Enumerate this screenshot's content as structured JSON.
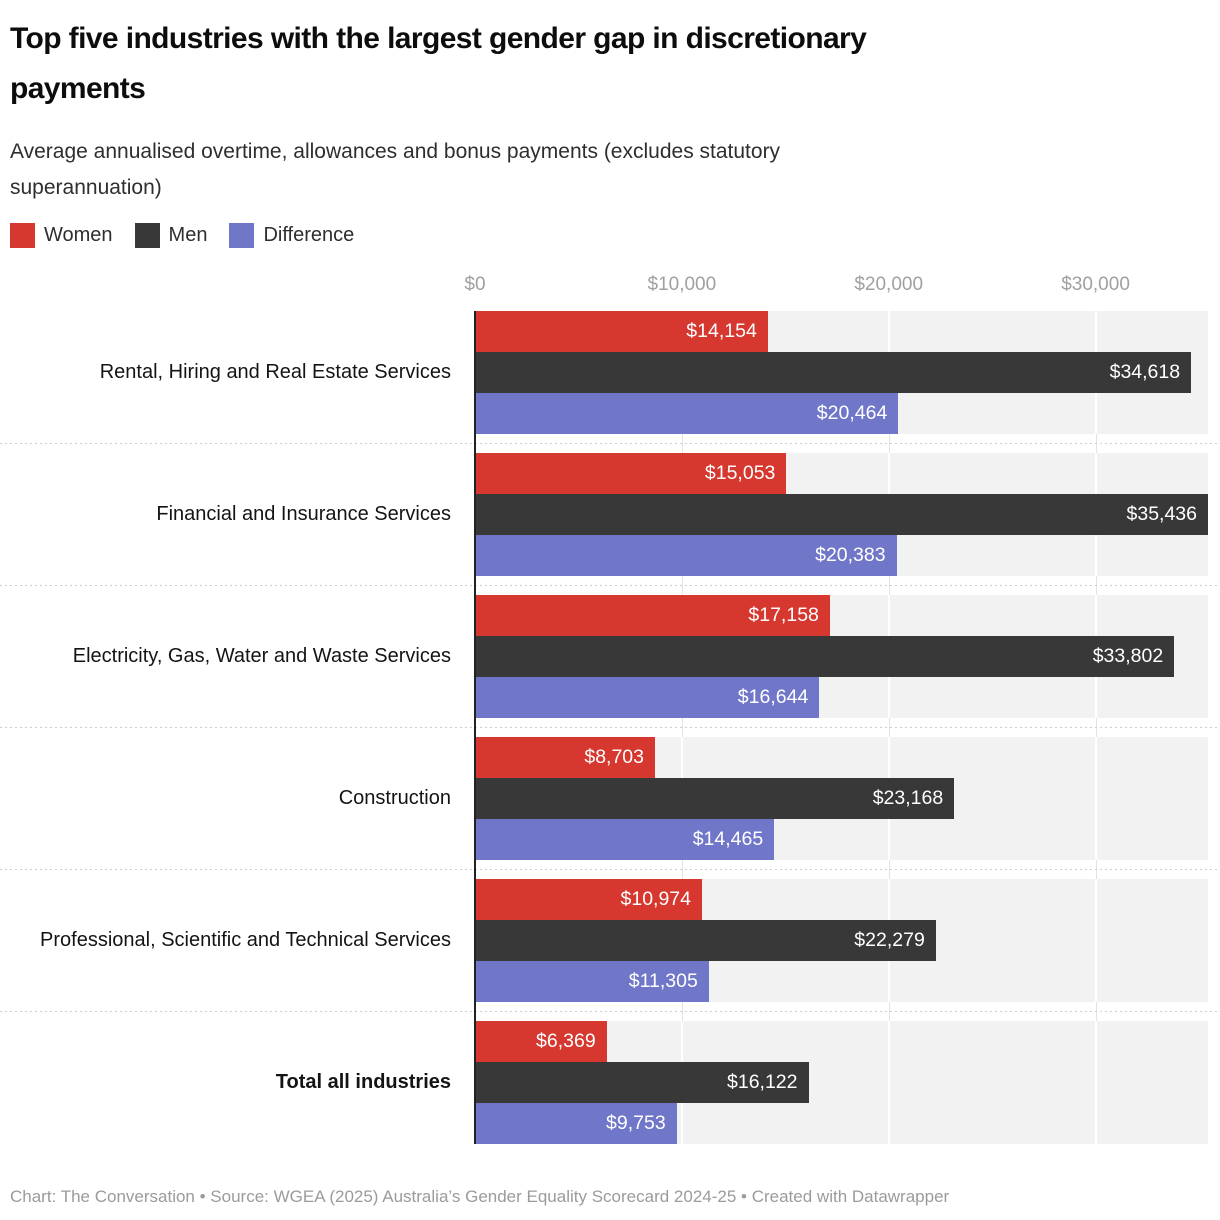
{
  "header": {
    "title": "Top five industries with the largest gender gap in discretionary payments",
    "subtitle": "Average annualised overtime, allowances and bonus payments (excludes statutory superannuation)"
  },
  "legend": {
    "items": [
      {
        "label": "Women",
        "color": "#d6372e"
      },
      {
        "label": "Men",
        "color": "#383838"
      },
      {
        "label": "Difference",
        "color": "#7077c9"
      }
    ]
  },
  "chart_data": {
    "type": "bar",
    "orientation": "horizontal",
    "title": "Top five industries with the largest gender gap in discretionary payments",
    "xlabel": "",
    "ylabel": "",
    "xlim": [
      0,
      35436
    ],
    "grid": true,
    "legend_position": "top",
    "plot_background": "#f2f2f2",
    "categories": [
      "Rental, Hiring and Real Estate Services",
      "Financial and Insurance Services",
      "Electricity, Gas, Water and Waste Services",
      "Construction",
      "Professional, Scientific and Technical Services",
      "Total all industries"
    ],
    "bold_category": "Total all industries",
    "series": [
      {
        "name": "Women",
        "color": "#d6372e",
        "values": [
          14154,
          15053,
          17158,
          8703,
          10974,
          6369
        ]
      },
      {
        "name": "Men",
        "color": "#383838",
        "values": [
          34618,
          35436,
          33802,
          23168,
          22279,
          16122
        ]
      },
      {
        "name": "Difference",
        "color": "#7077c9",
        "values": [
          20464,
          20383,
          16644,
          14465,
          11305,
          9753
        ]
      }
    ],
    "value_labels": [
      [
        "$14,154",
        "$34,618",
        "$20,464"
      ],
      [
        "$15,053",
        "$35,436",
        "$20,383"
      ],
      [
        "$17,158",
        "$33,802",
        "$16,644"
      ],
      [
        "$8,703",
        "$23,168",
        "$14,465"
      ],
      [
        "$10,974",
        "$22,279",
        "$11,305"
      ],
      [
        "$6,369",
        "$16,122",
        "$9,753"
      ]
    ],
    "axis_ticks": [
      {
        "value": 0,
        "label": "$0"
      },
      {
        "value": 10000,
        "label": "$10,000"
      },
      {
        "value": 20000,
        "label": "$20,000"
      },
      {
        "value": 30000,
        "label": "$30,000"
      }
    ]
  },
  "footer": {
    "text": "Chart: The Conversation • Source: WGEA (2025) Australia’s Gender Equality Scorecard 2024-25 • Created with Datawrapper"
  }
}
